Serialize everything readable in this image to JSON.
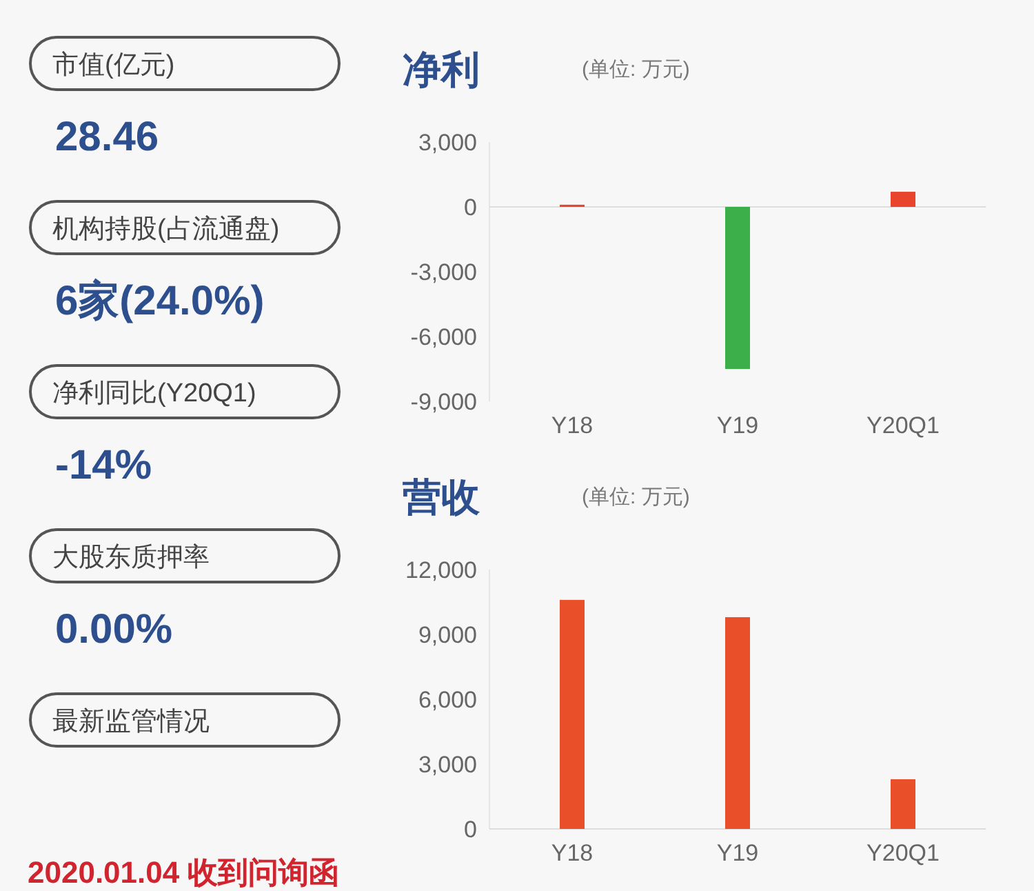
{
  "chart_data": [
    {
      "type": "other",
      "annotations": [
        "市值(亿元)",
        "28.46",
        "机构持股(占流通盘)",
        "6家(24.0%)",
        "净利同比(Y20Q1)",
        "-14%",
        "大股东质押率",
        "0.00%",
        "最新监管情况",
        "2020.01.04 收到问询函"
      ]
    },
    {
      "type": "bar",
      "title": "净利",
      "subtitle": "(单位: 万元)",
      "categories": [
        "Y18",
        "Y19",
        "Y20Q1"
      ],
      "values": [
        100,
        -7500,
        700
      ],
      "colors": [
        "#e8452c",
        "#3cae4a",
        "#e8452c"
      ],
      "ylim": [
        -9000,
        3000
      ],
      "yticks": [
        {
          "value": -9000,
          "label": "-9,000"
        },
        {
          "value": -6000,
          "label": "-6,000"
        },
        {
          "value": -3000,
          "label": "-3,000"
        },
        0,
        {
          "value": 3000,
          "label": "3,000"
        }
      ]
    },
    {
      "type": "bar",
      "title": "营收",
      "subtitle": "(单位: 万元)",
      "categories": [
        "Y18",
        "Y19",
        "Y20Q1"
      ],
      "values": [
        10600,
        9800,
        2300
      ],
      "colors": [
        "#e9502a",
        "#e9502a",
        "#e9502a"
      ],
      "ylim": [
        0,
        12000
      ],
      "yticks": [
        0,
        {
          "value": 3000,
          "label": "3,000"
        },
        {
          "value": 6000,
          "label": "6,000"
        },
        {
          "value": 9000,
          "label": "9,000"
        },
        {
          "value": 12000,
          "label": "12,000"
        }
      ]
    }
  ]
}
